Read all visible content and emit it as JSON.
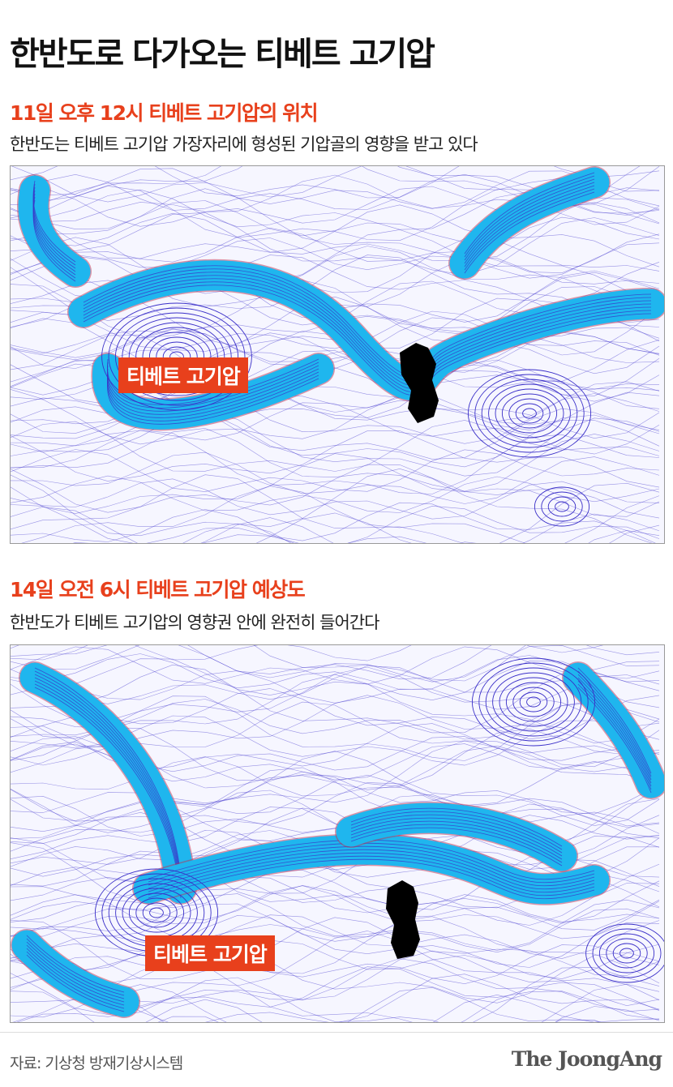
{
  "title": "한반도로 다가오는 티베트 고기압",
  "panels": [
    {
      "heading": "11일 오후 12시 티베트 고기압의 위치",
      "description": "한반도는 티베트 고기압 가장자리에 형성된 기압골의 영향을 받고 있다",
      "label": "티베트 고기압"
    },
    {
      "heading": "14일 오전 6시 티베트 고기압 예상도",
      "description": "한반도가 티베트 고기압의 영향권 안에 완전히 들어간다",
      "label": "티베트 고기압"
    }
  ],
  "source": "자료: 기상청 방재기상시스템",
  "logo": "The JoongAng",
  "colors": {
    "accent": "#e8401c",
    "jet": "#1fb6ee",
    "streamline": "#4a3fd0",
    "korea": "#000000"
  }
}
